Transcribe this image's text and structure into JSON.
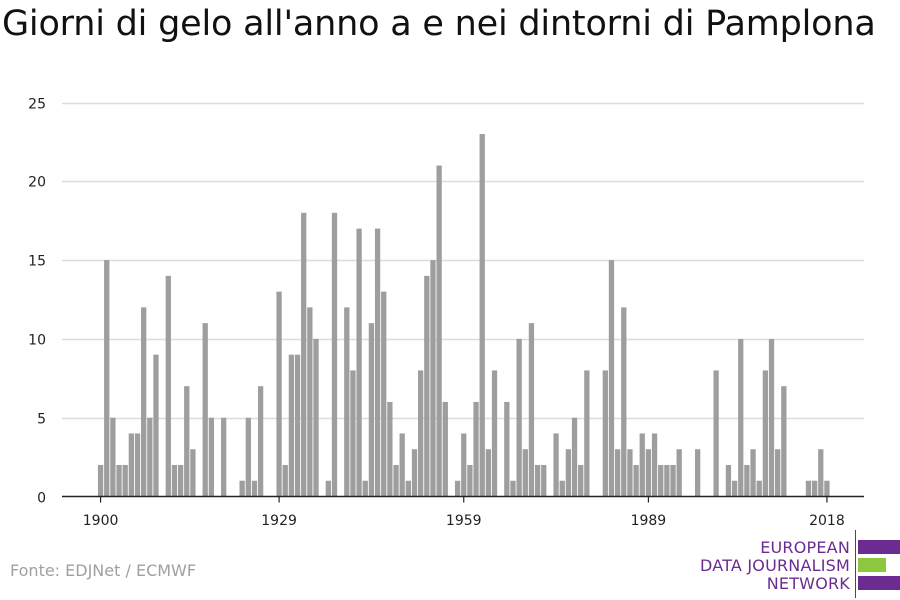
{
  "chart_data": {
    "type": "bar",
    "title": "Giorni di gelo all'anno a e nei dintorni di Pamplona",
    "xlabel": "",
    "ylabel": "",
    "ylim": [
      0,
      25
    ],
    "yticks": [
      0,
      5,
      10,
      15,
      20,
      25
    ],
    "xticks": [
      1900,
      1929,
      1959,
      1989,
      2018
    ],
    "grid": true,
    "legend": "none",
    "x": [
      1900,
      1901,
      1902,
      1903,
      1904,
      1905,
      1906,
      1907,
      1908,
      1909,
      1910,
      1911,
      1912,
      1913,
      1914,
      1915,
      1916,
      1917,
      1918,
      1919,
      1920,
      1921,
      1922,
      1923,
      1924,
      1925,
      1926,
      1927,
      1928,
      1929,
      1930,
      1931,
      1932,
      1933,
      1934,
      1935,
      1936,
      1937,
      1938,
      1939,
      1940,
      1941,
      1942,
      1943,
      1944,
      1945,
      1946,
      1947,
      1948,
      1949,
      1950,
      1951,
      1952,
      1953,
      1954,
      1955,
      1956,
      1957,
      1958,
      1959,
      1960,
      1961,
      1962,
      1963,
      1964,
      1965,
      1966,
      1967,
      1968,
      1969,
      1970,
      1971,
      1972,
      1973,
      1974,
      1975,
      1976,
      1977,
      1978,
      1979,
      1980,
      1981,
      1982,
      1983,
      1984,
      1985,
      1986,
      1987,
      1988,
      1989,
      1990,
      1991,
      1992,
      1993,
      1994,
      1995,
      1996,
      1997,
      1998,
      1999,
      2000,
      2001,
      2002,
      2003,
      2004,
      2005,
      2006,
      2007,
      2008,
      2009,
      2010,
      2011,
      2012,
      2013,
      2014,
      2015,
      2016,
      2017,
      2018
    ],
    "values": [
      2,
      15,
      5,
      2,
      2,
      4,
      4,
      12,
      5,
      9,
      0,
      14,
      2,
      2,
      7,
      3,
      0,
      11,
      5,
      0,
      5,
      0,
      0,
      1,
      5,
      1,
      7,
      0,
      0,
      13,
      2,
      9,
      9,
      18,
      12,
      10,
      0,
      1,
      18,
      0,
      12,
      8,
      17,
      1,
      11,
      17,
      13,
      6,
      2,
      4,
      1,
      3,
      8,
      14,
      15,
      21,
      6,
      0,
      1,
      4,
      2,
      6,
      23,
      3,
      8,
      0,
      6,
      1,
      10,
      3,
      11,
      2,
      2,
      0,
      4,
      1,
      3,
      5,
      2,
      8,
      0,
      0,
      8,
      15,
      3,
      12,
      3,
      2,
      4,
      3,
      4,
      2,
      2,
      2,
      3,
      0,
      0,
      3,
      0,
      0,
      8,
      0,
      2,
      1,
      10,
      2,
      3,
      1,
      8,
      10,
      3,
      7,
      0,
      0,
      0,
      1,
      1,
      3,
      1
    ],
    "bar_color": "#9e9e9e",
    "grid_color": "#dcdcdc",
    "axis_color": "#222222",
    "tick_text_color": "#222222"
  },
  "footer": {
    "source": "Fonte: EDJNet / ECMWF"
  },
  "logo": {
    "line1": "EUROPEAN",
    "line2": "DATA JOURNALISM",
    "line3": "NETWORK",
    "color_purple": "#6a2c91",
    "color_green": "#8dc63f"
  }
}
